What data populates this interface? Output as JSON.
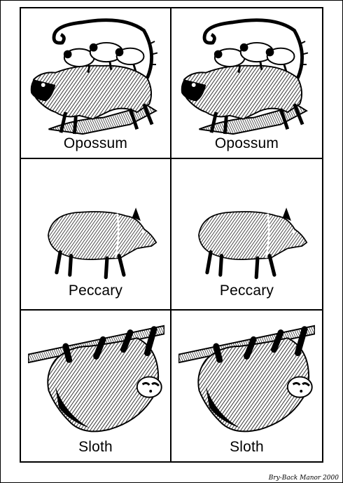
{
  "cards": [
    {
      "label": "Opossum",
      "icon": "opossum-illustration"
    },
    {
      "label": "Opossum",
      "icon": "opossum-illustration"
    },
    {
      "label": "Peccary",
      "icon": "peccary-illustration"
    },
    {
      "label": "Peccary",
      "icon": "peccary-illustration"
    },
    {
      "label": "Sloth",
      "icon": "sloth-illustration"
    },
    {
      "label": "Sloth",
      "icon": "sloth-illustration"
    }
  ],
  "footer": {
    "credit": "Bry-Back Manor 2000"
  }
}
